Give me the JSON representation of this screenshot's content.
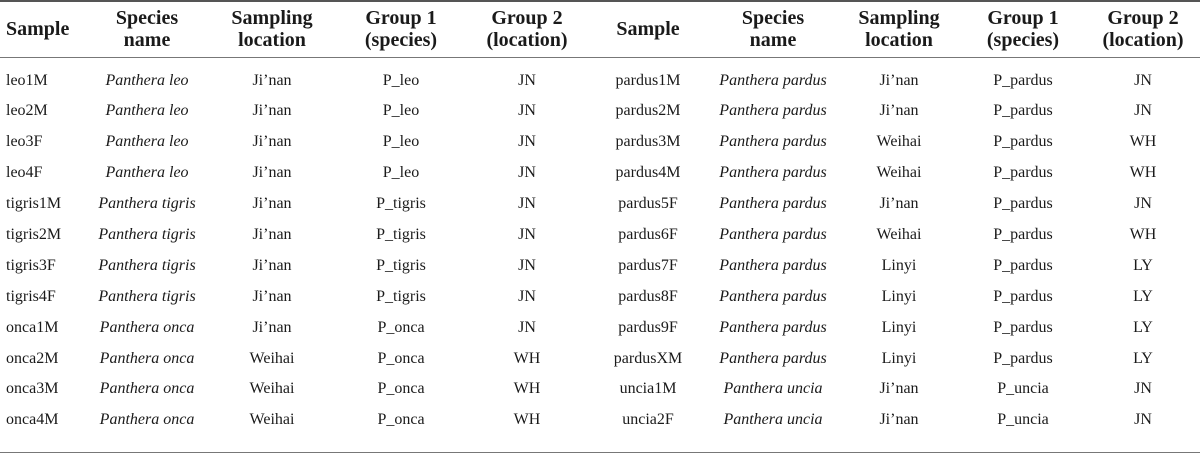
{
  "headers": [
    "Sample",
    "Species name",
    "Sampling location",
    "Group 1 (species)",
    "Group 2 (location)",
    "Sample",
    "Species name",
    "Sampling location",
    "Group 1 (species)",
    "Group 2 (location)"
  ],
  "header_lines": [
    [
      "Sample"
    ],
    [
      "Species",
      "name"
    ],
    [
      "Sampling",
      "location"
    ],
    [
      "Group 1",
      "(species)"
    ],
    [
      "Group 2",
      "(location)"
    ],
    [
      "Sample"
    ],
    [
      "Species",
      "name"
    ],
    [
      "Sampling",
      "location"
    ],
    [
      "Group 1",
      "(species)"
    ],
    [
      "Group 2",
      "(location)"
    ]
  ],
  "rows": [
    [
      "leo1M",
      "Panthera leo",
      "Ji’nan",
      "P_leo",
      "JN",
      "pardus1M",
      "Panthera pardus",
      "Ji’nan",
      "P_pardus",
      "JN"
    ],
    [
      "leo2M",
      "Panthera leo",
      "Ji’nan",
      "P_leo",
      "JN",
      "pardus2M",
      "Panthera pardus",
      "Ji’nan",
      "P_pardus",
      "JN"
    ],
    [
      "leo3F",
      "Panthera leo",
      "Ji’nan",
      "P_leo",
      "JN",
      "pardus3M",
      "Panthera pardus",
      "Weihai",
      "P_pardus",
      "WH"
    ],
    [
      "leo4F",
      "Panthera leo",
      "Ji’nan",
      "P_leo",
      "JN",
      "pardus4M",
      "Panthera pardus",
      "Weihai",
      "P_pardus",
      "WH"
    ],
    [
      "tigris1M",
      "Panthera tigris",
      "Ji’nan",
      "P_tigris",
      "JN",
      "pardus5F",
      "Panthera pardus",
      "Ji’nan",
      "P_pardus",
      "JN"
    ],
    [
      "tigris2M",
      "Panthera tigris",
      "Ji’nan",
      "P_tigris",
      "JN",
      "pardus6F",
      "Panthera pardus",
      "Weihai",
      "P_pardus",
      "WH"
    ],
    [
      "tigris3F",
      "Panthera tigris",
      "Ji’nan",
      "P_tigris",
      "JN",
      "pardus7F",
      "Panthera pardus",
      "Linyi",
      "P_pardus",
      "LY"
    ],
    [
      "tigris4F",
      "Panthera tigris",
      "Ji’nan",
      "P_tigris",
      "JN",
      "pardus8F",
      "Panthera pardus",
      "Linyi",
      "P_pardus",
      "LY"
    ],
    [
      "onca1M",
      "Panthera onca",
      "Ji’nan",
      "P_onca",
      "JN",
      "pardus9F",
      "Panthera pardus",
      "Linyi",
      "P_pardus",
      "LY"
    ],
    [
      "onca2M",
      "Panthera onca",
      "Weihai",
      "P_onca",
      "WH",
      "pardusXM",
      "Panthera pardus",
      "Linyi",
      "P_pardus",
      "LY"
    ],
    [
      "onca3M",
      "Panthera onca",
      "Weihai",
      "P_onca",
      "WH",
      "uncia1M",
      "Panthera uncia",
      "Ji’nan",
      "P_uncia",
      "JN"
    ],
    [
      "onca4M",
      "Panthera onca",
      "Weihai",
      "P_onca",
      "WH",
      "uncia2F",
      "Panthera uncia",
      "Ji’nan",
      "P_uncia",
      "JN"
    ]
  ]
}
